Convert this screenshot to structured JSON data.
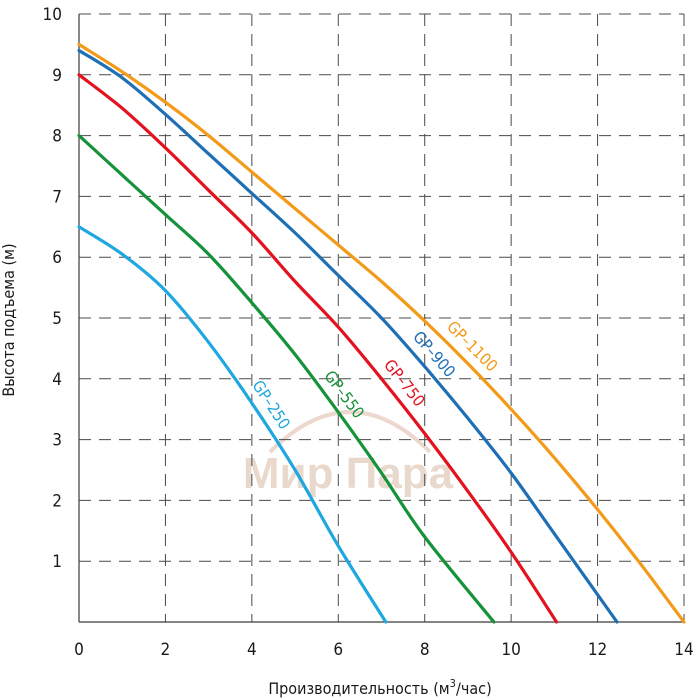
{
  "chart_data": {
    "type": "line",
    "xlabel": "Производительность (м",
    "xlabel_sup": "3",
    "xlabel_tail": "/час)",
    "ylabel": "Высота подъема (м)",
    "xlim": [
      0,
      14
    ],
    "ylim": [
      0,
      10
    ],
    "x_ticks": [
      0,
      2,
      4,
      6,
      8,
      10,
      12,
      14
    ],
    "y_ticks": [
      1,
      2,
      3,
      4,
      5,
      6,
      7,
      8,
      9,
      10
    ],
    "x_tick_labels": [
      "0",
      "2",
      "4",
      "6",
      "8",
      "10",
      "12",
      "14"
    ],
    "y_tick_labels": [
      "1",
      "2",
      "3",
      "4",
      "5",
      "6",
      "7",
      "8",
      "9",
      "10"
    ],
    "grid": true,
    "series": [
      {
        "name": "GP–250",
        "color": "#1ea7e1",
        "label_at_x": 4.15,
        "x": [
          0,
          1,
          2,
          3,
          4,
          5,
          6,
          7.1
        ],
        "y": [
          6.5,
          6.05,
          5.45,
          4.6,
          3.6,
          2.5,
          1.25,
          0
        ]
      },
      {
        "name": "GP–550",
        "color": "#16923a",
        "label_at_x": 5.85,
        "x": [
          0,
          1,
          2,
          3,
          4,
          5,
          6,
          7,
          8,
          9.6
        ],
        "y": [
          8.0,
          7.35,
          6.7,
          6.05,
          5.25,
          4.4,
          3.45,
          2.45,
          1.4,
          0
        ]
      },
      {
        "name": "GP–750",
        "color": "#e3121e",
        "label_at_x": 7.25,
        "x": [
          0,
          1,
          2,
          3,
          4,
          5,
          6,
          7,
          8,
          9,
          10,
          11.05
        ],
        "y": [
          9.0,
          8.45,
          7.8,
          7.1,
          6.4,
          5.6,
          4.85,
          4.0,
          3.1,
          2.15,
          1.15,
          0
        ]
      },
      {
        "name": "GP–900",
        "color": "#1f6fb5",
        "label_at_x": 7.95,
        "x": [
          0,
          1,
          2,
          3,
          4,
          5,
          6,
          7,
          8,
          9,
          10,
          11,
          12.45
        ],
        "y": [
          9.4,
          8.95,
          8.35,
          7.7,
          7.05,
          6.4,
          5.7,
          5.0,
          4.2,
          3.35,
          2.45,
          1.45,
          0
        ]
      },
      {
        "name": "GP–1100",
        "color": "#f39a18",
        "label_at_x": 8.85,
        "x": [
          0,
          1,
          2,
          3,
          4,
          5,
          6,
          7,
          8,
          9,
          10,
          11,
          12,
          13,
          14
        ],
        "y": [
          9.5,
          9.05,
          8.55,
          8.0,
          7.4,
          6.8,
          6.2,
          5.6,
          4.95,
          4.25,
          3.5,
          2.7,
          1.85,
          0.95,
          0
        ]
      }
    ]
  },
  "watermark": {
    "text": "Мир Пара"
  }
}
